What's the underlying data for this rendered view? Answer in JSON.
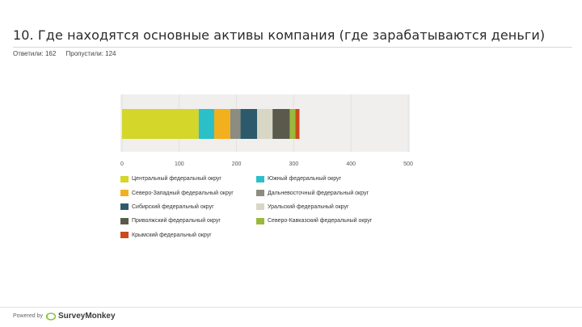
{
  "header": {
    "title": "10. Где находятся основные активы компания (где зарабатываются деньги)",
    "answered": "Ответили: 162",
    "skipped": "Пропустили: 124"
  },
  "chart_data": {
    "type": "bar",
    "orientation": "horizontal",
    "stacked": true,
    "categories": [
      ""
    ],
    "xlim": [
      0,
      500
    ],
    "x_ticks": [
      "0",
      "100",
      "200",
      "300",
      "400",
      "500"
    ],
    "grid": true,
    "legend_position": "bottom",
    "series": [
      {
        "name": "Центральный федеральный округ",
        "values": [
          134
        ],
        "color": "#d4d62a"
      },
      {
        "name": "Южный федеральный округ",
        "values": [
          27
        ],
        "color": "#2bbfc9"
      },
      {
        "name": "Северо-Западный федеральный округ",
        "values": [
          28
        ],
        "color": "#f2b01e"
      },
      {
        "name": "Дальневосточный федеральный округ",
        "values": [
          18
        ],
        "color": "#8c8c80"
      },
      {
        "name": "Сибирский федеральный округ",
        "values": [
          29
        ],
        "color": "#2d5a6b"
      },
      {
        "name": "Уральский федеральный округ",
        "values": [
          27
        ],
        "color": "#d8d6c4"
      },
      {
        "name": "Приволжский федеральный округ",
        "values": [
          30
        ],
        "color": "#5a5a4c"
      },
      {
        "name": "Северо-Кавказский федеральный округ",
        "values": [
          10
        ],
        "color": "#9ab83c"
      },
      {
        "name": "Крымский федеральный округ",
        "values": [
          7
        ],
        "color": "#cc4a1e"
      }
    ]
  },
  "footer": {
    "powered_by": "Powered by",
    "brand": "SurveyMonkey",
    "brand_color": "#8dc63f"
  }
}
